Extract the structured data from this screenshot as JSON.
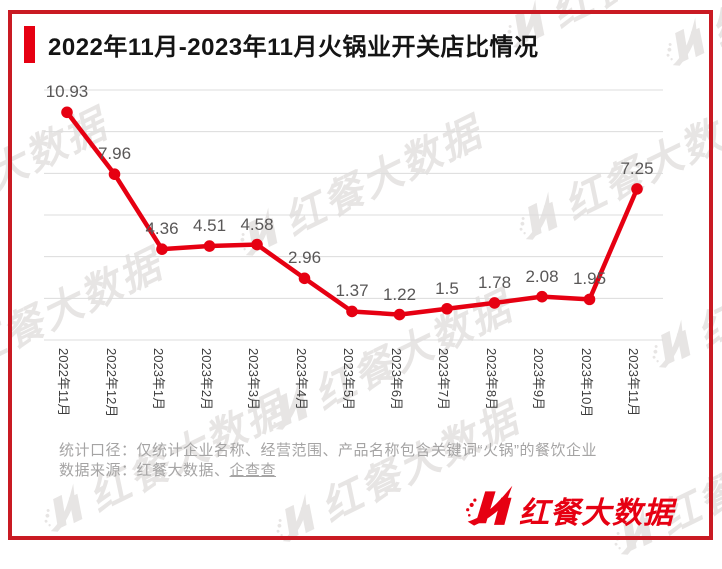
{
  "title": {
    "text": "2022年11月-2023年11月火锅业开关店比情况"
  },
  "chart_data": {
    "type": "line",
    "title": "2022年11月-2023年11月火锅业开关店比情况",
    "categories": [
      "2022年11月",
      "2022年12月",
      "2023年1月",
      "2023年2月",
      "2023年3月",
      "2023年4月",
      "2023年5月",
      "2023年6月",
      "2023年7月",
      "2023年8月",
      "2023年9月",
      "2023年10月",
      "2023年11月"
    ],
    "values": [
      10.93,
      7.96,
      4.36,
      4.51,
      4.58,
      2.96,
      1.37,
      1.22,
      1.5,
      1.78,
      2.08,
      1.95,
      7.25
    ],
    "xlabel": "",
    "ylabel": "",
    "ylim": [
      0,
      12
    ],
    "grid_step": 2,
    "grid": "horizontal-only",
    "legend": "none",
    "data_labels": "above-points"
  },
  "footer": {
    "caliber": "统计口径：仅统计企业名称、经营范围、产品名称包含关键词“火锅”的餐饮企业",
    "source_prefix": "数据来源：红餐大数据、",
    "source_link": "企查查"
  },
  "logo": {
    "text": "红餐大数据"
  },
  "watermark": {
    "text": "红餐大数据"
  },
  "colors": {
    "accent_red": "#e60012",
    "border_red": "#c91a23",
    "gridline": "#dcdcdc",
    "value_label": "#595757",
    "axis_label": "#3d3d3d",
    "footer_text": "#a5a4a4",
    "watermark": "#e7e5e4"
  }
}
